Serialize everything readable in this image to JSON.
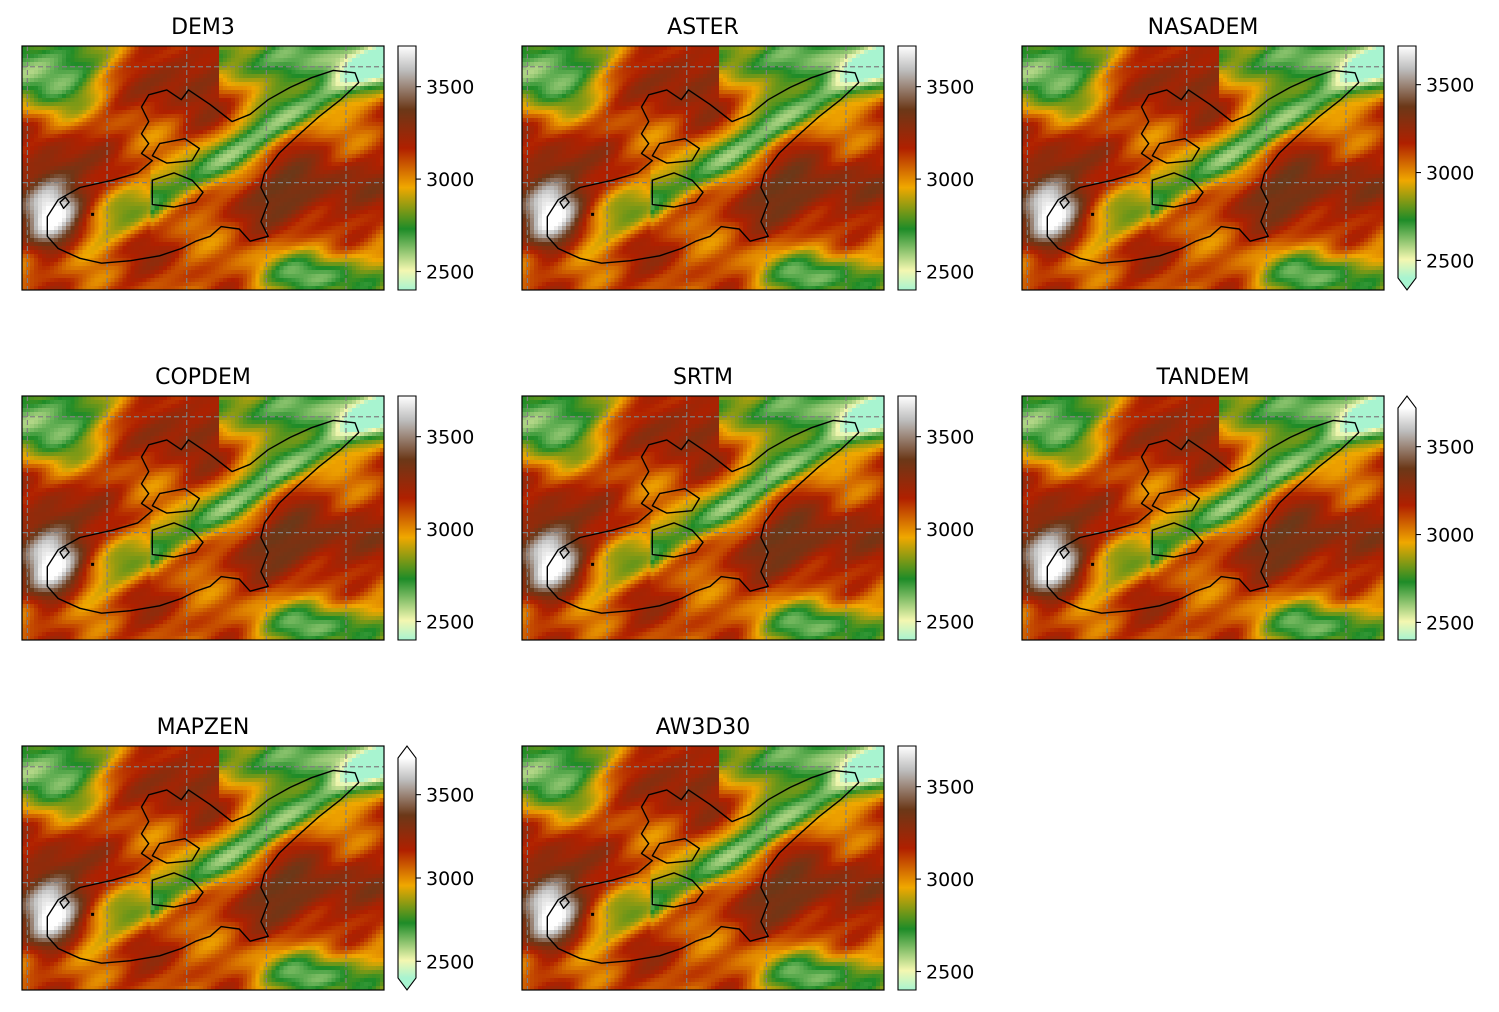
{
  "figure": {
    "colormap": [
      "#a8f4d0",
      "#f4f7b0",
      "#1e8c28",
      "#f0a800",
      "#b02000",
      "#6b3818",
      "#bdbdbd",
      "#ffffff"
    ],
    "gridline_color": "#808080",
    "outline_color": "#000000"
  },
  "chart_data": [
    {
      "type": "heatmap",
      "title": "DEM3",
      "colorbar": {
        "min": 2400,
        "max": 3720,
        "ticks": [
          2500,
          3000,
          3500
        ],
        "extend": "neither"
      }
    },
    {
      "type": "heatmap",
      "title": "ASTER",
      "colorbar": {
        "min": 2400,
        "max": 3720,
        "ticks": [
          2500,
          3000,
          3500
        ],
        "extend": "neither"
      }
    },
    {
      "type": "heatmap",
      "title": "NASADEM",
      "colorbar": {
        "min": 2400,
        "max": 3720,
        "ticks": [
          2500,
          3000,
          3500
        ],
        "extend": "min"
      }
    },
    {
      "type": "heatmap",
      "title": "COPDEM",
      "colorbar": {
        "min": 2400,
        "max": 3720,
        "ticks": [
          2500,
          3000,
          3500
        ],
        "extend": "neither"
      }
    },
    {
      "type": "heatmap",
      "title": "SRTM",
      "colorbar": {
        "min": 2400,
        "max": 3720,
        "ticks": [
          2500,
          3000,
          3500
        ],
        "extend": "neither"
      }
    },
    {
      "type": "heatmap",
      "title": "TANDEM",
      "colorbar": {
        "min": 2400,
        "max": 3720,
        "ticks": [
          2500,
          3000,
          3500
        ],
        "extend": "max"
      }
    },
    {
      "type": "heatmap",
      "title": "MAPZEN",
      "colorbar": {
        "min": 2400,
        "max": 3720,
        "ticks": [
          2500,
          3000,
          3500
        ],
        "extend": "both"
      }
    },
    {
      "type": "heatmap",
      "title": "AW3D30",
      "colorbar": {
        "min": 2400,
        "max": 3720,
        "ticks": [
          2500,
          3000,
          3500
        ],
        "extend": "neither"
      }
    }
  ]
}
